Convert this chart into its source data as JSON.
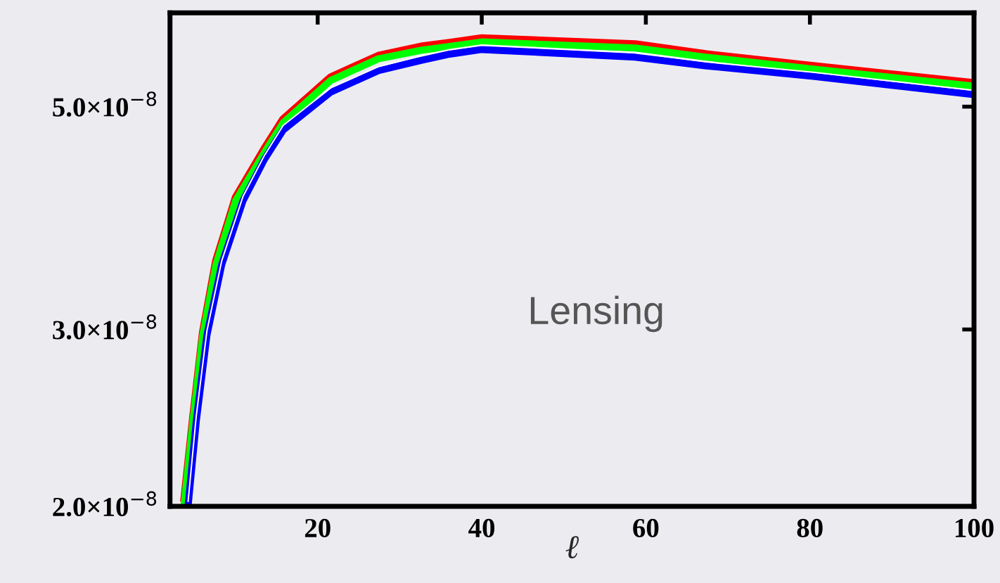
{
  "chart_data": {
    "type": "line",
    "xlabel": "ℓ",
    "log": "y",
    "xlim": [
      2,
      100
    ],
    "xticks": [
      20,
      40,
      60,
      80,
      100
    ],
    "ylim": [
      2e-08,
      6.2e-08
    ],
    "yticks": [
      {
        "value": 2e-08,
        "label": "2.0×10$^{−8}$"
      },
      {
        "value": 3e-08,
        "label": "3.0×10$^{−8}$"
      },
      {
        "value": 5e-08,
        "label": "5.0×10$^{−8}$"
      }
    ],
    "marker": "none",
    "line_style": "solid",
    "annotations": [
      "Lensing"
    ],
    "series": [
      {
        "color": "#ff0000",
        "x": [
          3.7,
          4.8,
          6.0,
          7.6,
          10.0,
          13.5,
          15.8,
          21.6,
          27.4,
          32.6,
          36.1,
          40,
          58.7,
          67.4,
          80.4,
          100
        ],
        "values": [
          2.02e-08,
          2.45e-08,
          2.98e-08,
          3.51e-08,
          4.06e-08,
          4.54e-08,
          4.86e-08,
          5.35e-08,
          5.62e-08,
          5.74e-08,
          5.79e-08,
          5.85e-08,
          5.77e-08,
          5.64e-08,
          5.49e-08,
          5.28e-08
        ]
      },
      {
        "color": "#00ff00",
        "x": [
          3.7,
          4.8,
          6.0,
          7.6,
          10.0,
          13.5,
          15.8,
          21.6,
          27.4,
          32.6,
          36.1,
          40,
          58.7,
          67.4,
          80.4,
          100
        ],
        "values": [
          2e-08,
          2.43e-08,
          2.96e-08,
          3.48e-08,
          4.03e-08,
          4.5e-08,
          4.82e-08,
          5.31e-08,
          5.58e-08,
          5.69e-08,
          5.74e-08,
          5.8e-08,
          5.72e-08,
          5.6e-08,
          5.45e-08,
          5.24e-08
        ]
      },
      {
        "color": "#0000ff",
        "x": [
          4.2,
          5.2,
          6.5,
          8.3,
          10.9,
          13.5,
          15.8,
          21.6,
          27.4,
          32.6,
          36.1,
          40,
          58.7,
          67.4,
          80.4,
          100
        ],
        "values": [
          2e-08,
          2.43e-08,
          2.96e-08,
          3.48e-08,
          4.03e-08,
          4.43e-08,
          4.74e-08,
          5.17e-08,
          5.43e-08,
          5.56e-08,
          5.64e-08,
          5.7e-08,
          5.6e-08,
          5.49e-08,
          5.36e-08,
          5.14e-08
        ]
      },
      {
        "color": "#ffffff",
        "x": [
          4.2,
          5.2,
          6.5,
          8.3,
          10.9,
          13.5,
          15.8,
          21.6,
          27.4,
          32.6,
          36.1,
          40,
          58.7,
          67.4,
          80.4,
          100
        ],
        "values": [
          2.02e-08,
          2.46e-08,
          2.99e-08,
          3.51e-08,
          4.07e-08,
          4.47e-08,
          4.79e-08,
          5.22e-08,
          5.48e-08,
          5.62e-08,
          5.7e-08,
          5.76e-08,
          5.66e-08,
          5.54e-08,
          5.41e-08,
          5.19e-08
        ]
      }
    ]
  }
}
